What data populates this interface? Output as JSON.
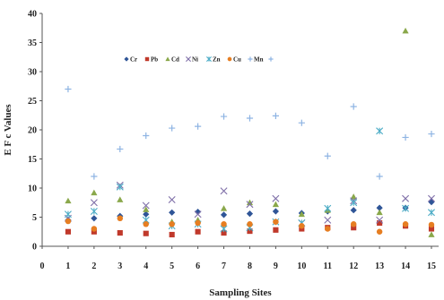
{
  "chart_data": {
    "type": "scatter",
    "title": "",
    "xlabel": "Sampling Sites",
    "ylabel": "E F c Values",
    "xlim": [
      0,
      15
    ],
    "ylim": [
      0,
      40
    ],
    "x_ticks": [
      "0",
      "1",
      "2",
      "3",
      "4",
      "5",
      "6",
      "7",
      "8",
      "9",
      "10",
      "11",
      "12",
      "13",
      "14",
      "15"
    ],
    "y_ticks": [
      "0",
      "5",
      "10",
      "15",
      "20",
      "25",
      "30",
      "35",
      "40"
    ],
    "grid": false,
    "legend_position": "top-right",
    "x": [
      1,
      2,
      3,
      4,
      5,
      6,
      7,
      8,
      9,
      10,
      11,
      12,
      13,
      14,
      15
    ],
    "series": [
      {
        "name": "Cr",
        "marker": "diamond",
        "color": "#2f5597",
        "values": [
          4.5,
          4.8,
          5.2,
          5.5,
          5.8,
          5.9,
          5.4,
          5.6,
          6.0,
          5.7,
          6.0,
          6.2,
          6.6,
          6.6,
          7.6
        ]
      },
      {
        "name": "Pb",
        "marker": "square",
        "color": "#c0392b",
        "values": [
          2.5,
          2.5,
          2.3,
          2.2,
          2.0,
          2.5,
          2.3,
          2.6,
          2.8,
          3.0,
          3.2,
          3.2,
          4.0,
          3.5,
          3.0
        ]
      },
      {
        "name": "Cd",
        "marker": "triangle",
        "color": "#8aa84b",
        "values": [
          7.8,
          9.2,
          8.0,
          6.3,
          4.2,
          4.5,
          6.5,
          7.5,
          7.2,
          5.5,
          6.2,
          8.5,
          5.8,
          37.0,
          2.0
        ]
      },
      {
        "name": "Ni",
        "marker": "x",
        "color": "#7f6fa8",
        "values": [
          4.8,
          7.5,
          10.5,
          7.0,
          8.0,
          5.5,
          9.5,
          7.2,
          8.2,
          4.0,
          4.5,
          7.8,
          4.5,
          8.2,
          8.2
        ]
      },
      {
        "name": "Zn",
        "marker": "xstar",
        "color": "#4bacc6",
        "values": [
          5.5,
          6.0,
          10.2,
          4.5,
          3.5,
          3.8,
          3.0,
          3.2,
          4.2,
          4.0,
          6.5,
          7.5,
          19.8,
          6.5,
          5.8
        ]
      },
      {
        "name": "Cu",
        "marker": "circle",
        "color": "#e67e22",
        "values": [
          4.3,
          3.0,
          4.8,
          3.8,
          3.8,
          4.0,
          3.8,
          3.8,
          4.2,
          3.5,
          3.0,
          3.8,
          2.5,
          3.8,
          3.7
        ]
      },
      {
        "name": "Mn",
        "marker": "plus",
        "color": "#8eb4e3",
        "values": [
          27.0,
          12.0,
          16.7,
          19.0,
          20.3,
          20.6,
          22.3,
          22.0,
          22.4,
          21.2,
          15.5,
          24.0,
          12.0,
          18.7,
          19.3
        ]
      }
    ],
    "legend_extra_marker": {
      "marker": "plus",
      "color": "#8eb4e3"
    }
  }
}
